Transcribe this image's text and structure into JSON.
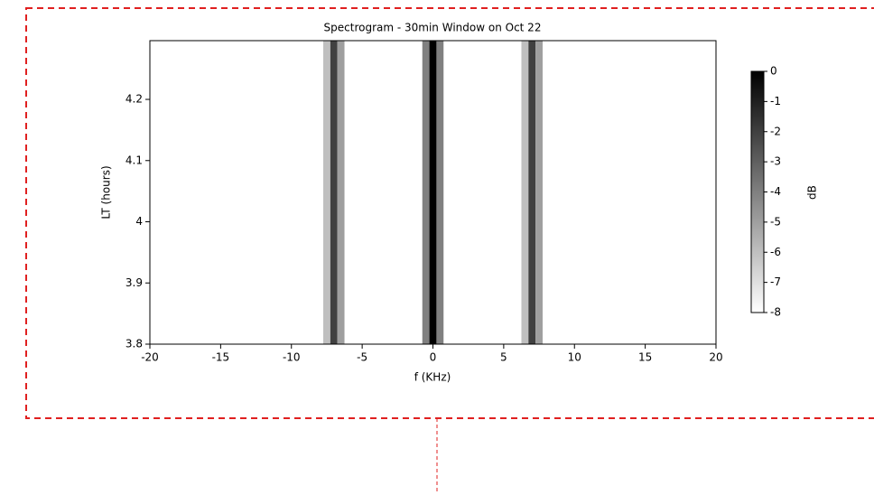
{
  "chart_data": {
    "type": "spectrogram",
    "title": "Spectrogram - 30min Window on Oct 22",
    "x_label": "f (KHz)",
    "y_label": "LT (hours)",
    "x": [
      -7.5,
      -7,
      -6.5,
      -0.5,
      0,
      0.5,
      6.5,
      7,
      7.5
    ],
    "values": [
      -6,
      -2,
      -5,
      -4,
      0,
      -4,
      -6,
      -2,
      -5
    ],
    "xlim": [
      -20,
      20
    ],
    "xticks": [
      -20,
      -15,
      -10,
      -5,
      0,
      5,
      10,
      15,
      20
    ],
    "ylim": [
      3.8,
      4.296
    ],
    "yticks": [
      3.8,
      3.9,
      4.0,
      4.1,
      4.2
    ],
    "colorbar": {
      "label": "dB",
      "clim": [
        -8,
        0
      ],
      "ticks": [
        0,
        -1,
        -2,
        -3,
        -4,
        -5,
        -6,
        -7,
        -8
      ]
    }
  }
}
